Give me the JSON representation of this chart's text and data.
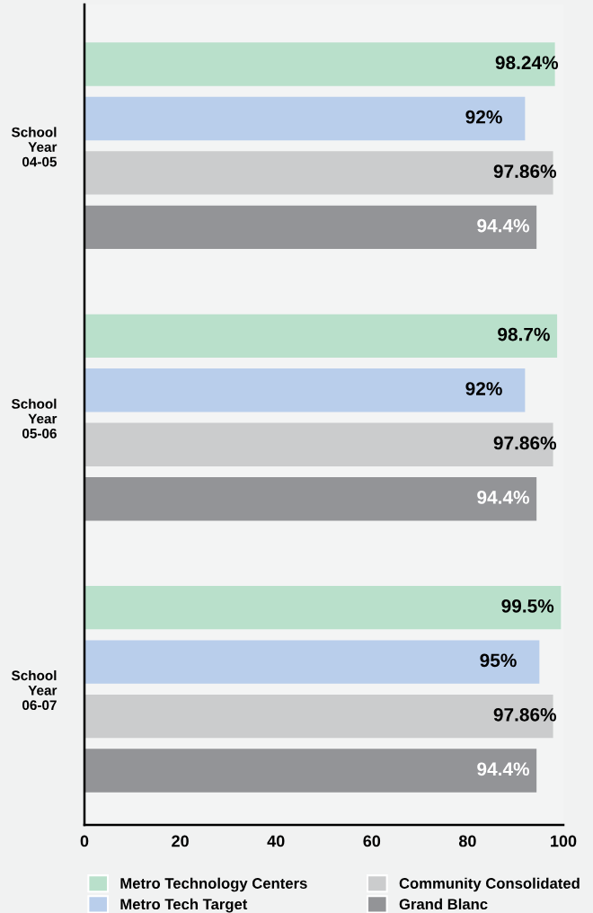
{
  "chart_data": {
    "type": "bar",
    "orientation": "horizontal",
    "categories": [
      "School\nYear\n04-05",
      "School\nYear\n05-06",
      "School\nYear\n06-07"
    ],
    "series": [
      {
        "name": "Metro Technology Centers",
        "color": "#b9e0cb",
        "values": [
          98.24,
          98.7,
          99.5
        ],
        "value_labels": [
          "98.24%",
          "98.7%",
          "99.5%"
        ]
      },
      {
        "name": "Metro Tech Target",
        "color": "#b9ceeb",
        "values": [
          92,
          92,
          95
        ],
        "value_labels": [
          "92%",
          "92%",
          "95%"
        ]
      },
      {
        "name": "Community Consolidated",
        "color": "#cbcccd",
        "values": [
          97.86,
          97.86,
          97.86
        ],
        "value_labels": [
          "97.86%",
          "97.86%",
          "97.86%"
        ]
      },
      {
        "name": "Grand Blanc",
        "color": "#939497",
        "values": [
          94.4,
          94.4,
          94.4
        ],
        "value_labels": [
          "94.4%",
          "94.4%",
          "94.4%"
        ]
      }
    ],
    "xlim": [
      0,
      100
    ],
    "xticks": [
      0,
      20,
      40,
      60,
      80,
      100
    ],
    "grid": false,
    "legend": "bottom"
  }
}
